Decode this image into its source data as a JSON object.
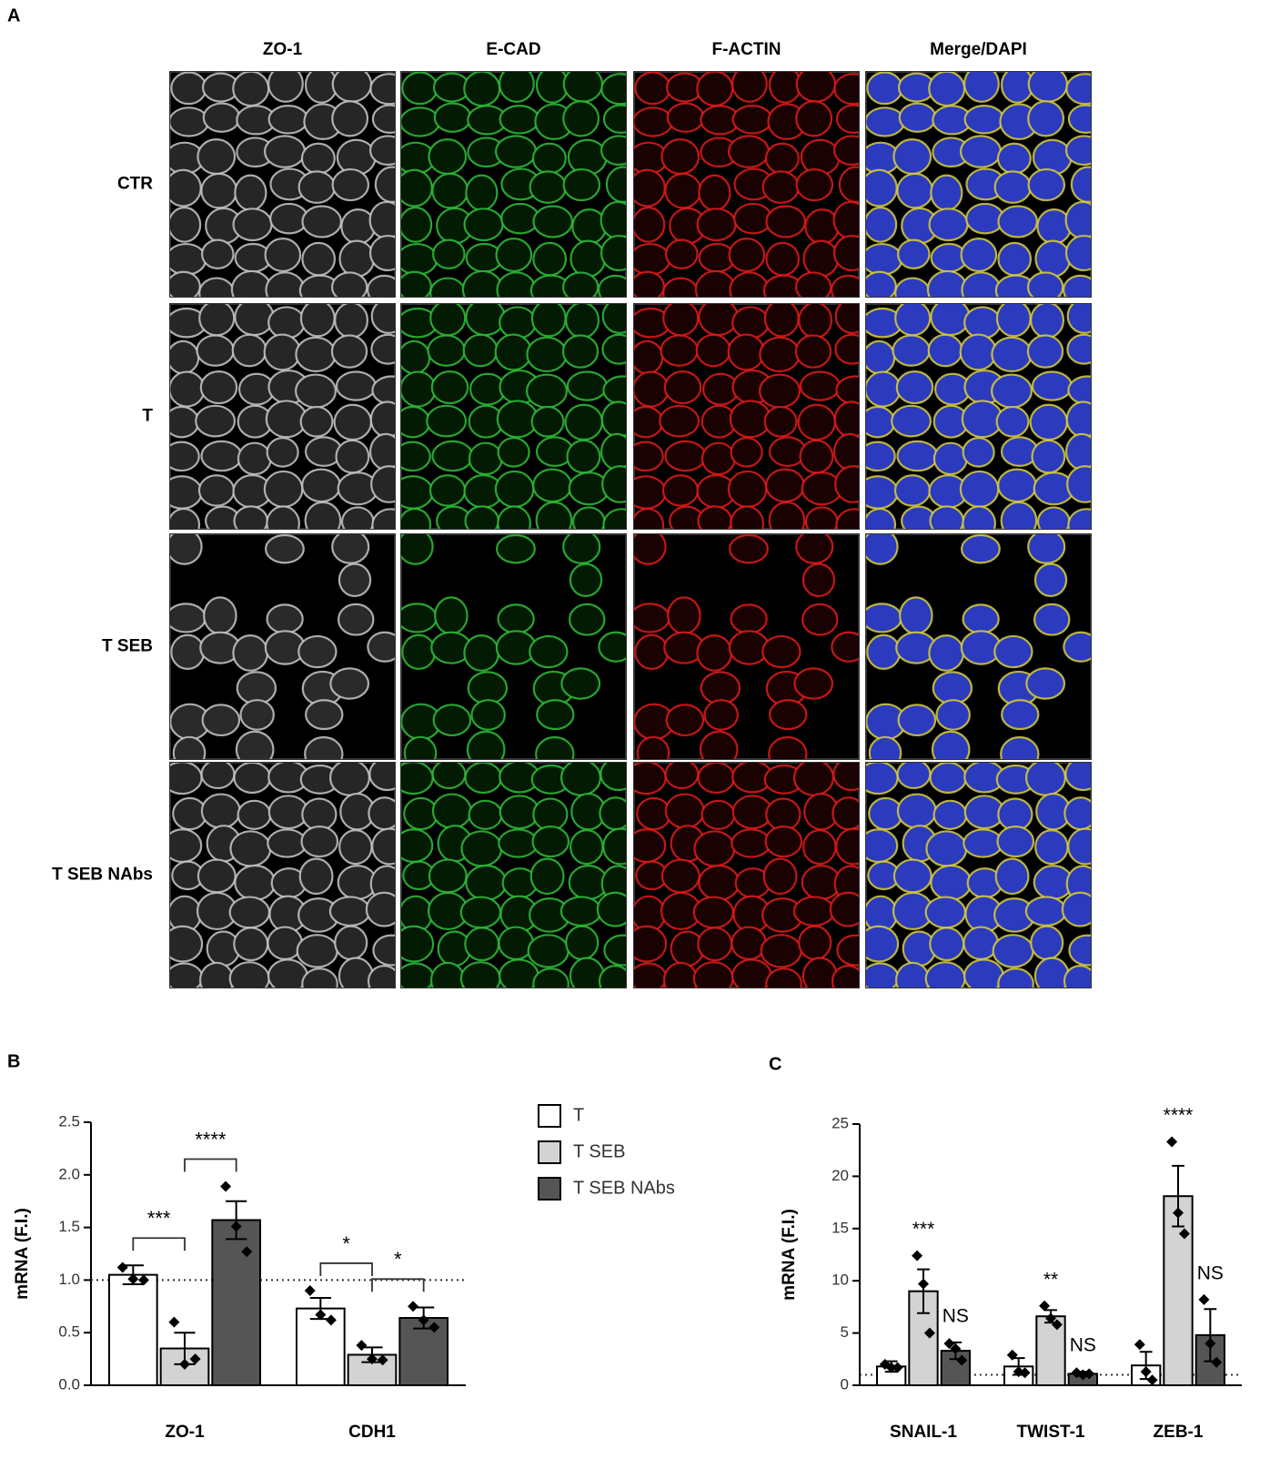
{
  "panel_a": {
    "label": "A",
    "columns": [
      "ZO-1",
      "E-CAD",
      "F-ACTIN",
      "Merge/DAPI"
    ],
    "rows": [
      "CTR",
      "T",
      "T SEB",
      "T SEB NAbs"
    ]
  },
  "chart_data": [
    {
      "type": "bar",
      "panel": "B",
      "ylabel": "mRNA (F.I.)",
      "categories": [
        "ZO-1",
        "CDH1"
      ],
      "ylim": [
        0,
        2.5
      ],
      "yticks": [
        {
          "value": 0,
          "label": "0.0"
        },
        0.5,
        {
          "value": 1,
          "label": "1.0"
        },
        1.5,
        {
          "value": 2,
          "label": "2.0"
        },
        2.5
      ],
      "reference_line": 1,
      "series": [
        {
          "name": "T",
          "color": "#ffffff",
          "values": [
            1.05,
            0.73
          ],
          "errors": [
            0.09,
            0.1
          ],
          "points": [
            [
              1.12,
              1.01,
              1.0
            ],
            [
              0.9,
              0.67,
              0.62
            ]
          ]
        },
        {
          "name": "T SEB",
          "color": "#d3d3d3",
          "values": [
            0.35,
            0.29
          ],
          "errors": [
            0.15,
            0.07
          ],
          "points": [
            [
              0.6,
              0.2,
              0.25
            ],
            [
              0.38,
              0.25,
              0.24
            ]
          ]
        },
        {
          "name": "T SEB NAbs",
          "color": "#555555",
          "values": [
            1.57,
            0.64
          ],
          "errors": [
            0.18,
            0.1
          ],
          "points": [
            [
              1.89,
              1.51,
              1.27
            ],
            [
              0.75,
              0.62,
              0.55
            ]
          ]
        }
      ],
      "significance": [
        {
          "label": "***",
          "category": 0,
          "series": [
            0,
            1
          ]
        },
        {
          "label": "****",
          "category": 0,
          "series": [
            1,
            2
          ]
        },
        {
          "label": "*",
          "category": 1,
          "series": [
            0,
            1
          ]
        },
        {
          "label": "*",
          "category": 1,
          "series": [
            1,
            2
          ]
        }
      ]
    },
    {
      "type": "bar",
      "panel": "C",
      "ylabel": "mRNA (F.I.)",
      "categories": [
        "SNAIL-1",
        "TWIST-1",
        "ZEB-1"
      ],
      "ylim": [
        0,
        25
      ],
      "yticks": [
        0,
        5,
        10,
        15,
        20,
        25
      ],
      "reference_line": 1,
      "series": [
        {
          "color": "#ffffff",
          "values": [
            1.8,
            1.8,
            1.9
          ],
          "errors": [
            0.5,
            0.8,
            1.3
          ],
          "points": [
            [
              2.0,
              1.7,
              1.7
            ],
            [
              2.9,
              1.3,
              1.2
            ],
            [
              3.9,
              1.3,
              0.5
            ]
          ]
        },
        {
          "color": "#d3d3d3",
          "values": [
            9.0,
            6.6,
            18.1
          ],
          "errors": [
            2.1,
            0.6,
            2.9
          ],
          "points": [
            [
              12.4,
              9.7,
              5.0
            ],
            [
              7.6,
              6.4,
              5.8
            ],
            [
              23.3,
              16.5,
              14.5
            ]
          ]
        },
        {
          "color": "#555555",
          "values": [
            3.3,
            1.1,
            4.8
          ],
          "errors": [
            0.8,
            0.2,
            2.5
          ],
          "points": [
            [
              4.0,
              3.5,
              2.4
            ],
            [
              1.2,
              1.0,
              1.1
            ],
            [
              8.2,
              4.0,
              2.2
            ]
          ]
        }
      ],
      "significance": [
        {
          "label": "***",
          "category": 0,
          "series": [
            1
          ]
        },
        {
          "label": "NS",
          "category": 0,
          "series": [
            2
          ]
        },
        {
          "label": "**",
          "category": 1,
          "series": [
            1
          ]
        },
        {
          "label": "NS",
          "category": 1,
          "series": [
            2
          ]
        },
        {
          "label": "****",
          "category": 2,
          "series": [
            1
          ]
        },
        {
          "label": "NS",
          "category": 2,
          "series": [
            2
          ]
        }
      ]
    }
  ]
}
